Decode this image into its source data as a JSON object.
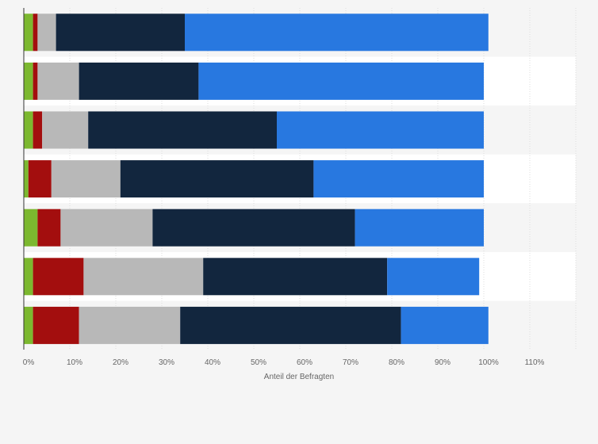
{
  "chart_data": {
    "type": "bar",
    "orientation": "horizontal",
    "stacked": true,
    "xlabel": "Anteil der Befragten",
    "xlim": [
      0,
      120
    ],
    "x_ticks": [
      0,
      10,
      20,
      30,
      40,
      50,
      60,
      70,
      80,
      90,
      100,
      110
    ],
    "x_tick_labels": [
      "0%",
      "10%",
      "20%",
      "30%",
      "40%",
      "50%",
      "60%",
      "70%",
      "80%",
      "90%",
      "100%",
      "110%"
    ],
    "grid": true,
    "legend": "none",
    "categories": [
      "",
      "",
      "",
      "",
      "",
      "",
      ""
    ],
    "series": [
      {
        "color": "#7cb82f",
        "values": [
          2,
          2,
          2,
          1,
          3,
          2,
          2
        ]
      },
      {
        "color": "#a30e0e",
        "values": [
          1,
          1,
          2,
          5,
          5,
          11,
          10
        ]
      },
      {
        "color": "#b8b8b8",
        "values": [
          4,
          9,
          10,
          15,
          20,
          26,
          22
        ]
      },
      {
        "color": "#12263e",
        "values": [
          28,
          26,
          41,
          42,
          44,
          40,
          48
        ]
      },
      {
        "color": "#2878e0",
        "values": [
          66,
          62,
          45,
          37,
          28,
          20,
          19
        ]
      }
    ]
  }
}
